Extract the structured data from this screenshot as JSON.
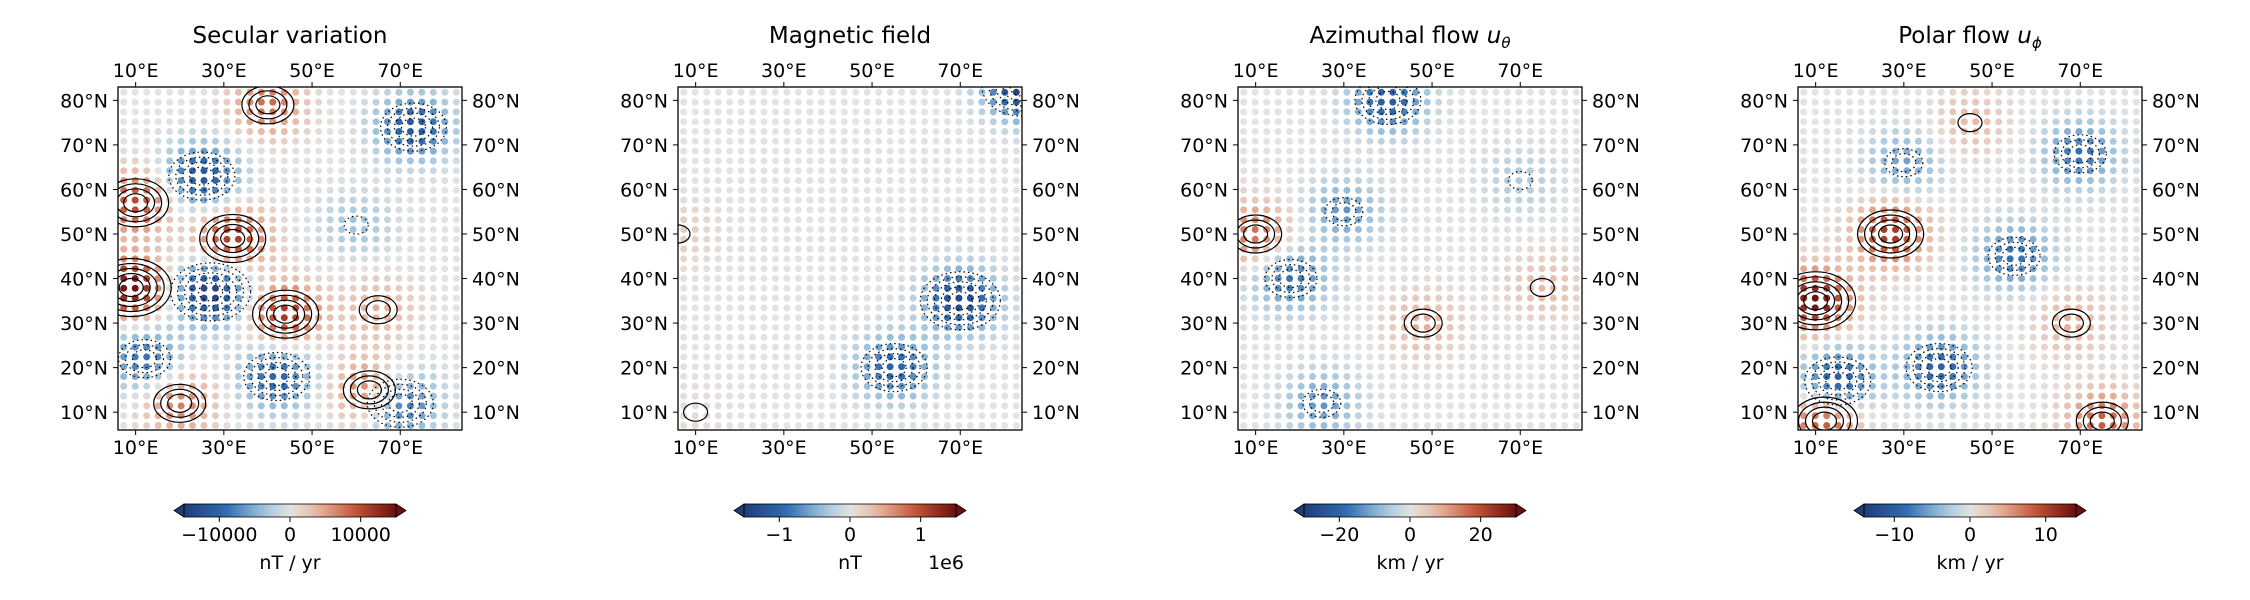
{
  "colors": {
    "neg_strong": "#243b7a",
    "neg_mid": "#2f6db2",
    "neg_light": "#9ec3dc",
    "neutral": "#e3e3e3",
    "pos_light": "#e8b9a4",
    "pos_mid": "#c65a3a",
    "pos_strong": "#6b0e0e",
    "contour": "#000000"
  },
  "chart_data": [
    {
      "type": "heatmap",
      "title_text": "Secular variation",
      "title_sub": "",
      "xtick_labels": [
        "10°E",
        "30°E",
        "50°E",
        "70°E"
      ],
      "xticks": [
        10,
        30,
        50,
        70
      ],
      "ytick_labels": [
        "10°N",
        "20°N",
        "30°N",
        "40°N",
        "50°N",
        "60°N",
        "70°N",
        "80°N"
      ],
      "yticks": [
        10,
        20,
        30,
        40,
        50,
        60,
        70,
        80
      ],
      "xlim": [
        6,
        84
      ],
      "ylim": [
        6,
        83
      ],
      "colorbar": {
        "ticks": [
          -10000,
          0,
          10000
        ],
        "tick_labels": [
          "−10000",
          "0",
          "10000"
        ],
        "label": "nT / yr",
        "offset": "",
        "vmax": 15000
      },
      "features": [
        {
          "lon": 25,
          "lat": 63,
          "v": -0.8
        },
        {
          "lon": 73,
          "lat": 74,
          "v": -0.8
        },
        {
          "lon": 27,
          "lat": 37,
          "v": -1.0
        },
        {
          "lon": 42,
          "lat": 18,
          "v": -0.7
        },
        {
          "lon": 70,
          "lat": 12,
          "v": -0.7
        },
        {
          "lon": 12,
          "lat": 22,
          "v": -0.6
        },
        {
          "lon": 32,
          "lat": 49,
          "v": 0.8
        },
        {
          "lon": 44,
          "lat": 32,
          "v": 0.8
        },
        {
          "lon": 9,
          "lat": 38,
          "v": 1.0
        },
        {
          "lon": 10,
          "lat": 57,
          "v": 0.7
        },
        {
          "lon": 40,
          "lat": 79,
          "v": 0.55
        },
        {
          "lon": 63,
          "lat": 15,
          "v": 0.6
        },
        {
          "lon": 20,
          "lat": 12,
          "v": 0.5
        },
        {
          "lon": 65,
          "lat": 33,
          "v": 0.3
        },
        {
          "lon": 60,
          "lat": 52,
          "v": -0.25
        }
      ]
    },
    {
      "type": "heatmap",
      "title_text": "Magnetic field",
      "title_sub": "",
      "xtick_labels": [
        "10°E",
        "30°E",
        "50°E",
        "70°E"
      ],
      "xticks": [
        10,
        30,
        50,
        70
      ],
      "ytick_labels": [
        "10°N",
        "20°N",
        "30°N",
        "40°N",
        "50°N",
        "60°N",
        "70°N",
        "80°N"
      ],
      "yticks": [
        10,
        20,
        30,
        40,
        50,
        60,
        70,
        80
      ],
      "xlim": [
        6,
        84
      ],
      "ylim": [
        6,
        83
      ],
      "colorbar": {
        "ticks": [
          -1,
          0,
          1
        ],
        "tick_labels": [
          "−1",
          "0",
          "1"
        ],
        "label": "nT",
        "offset": "1e6",
        "vmax": 1.5
      },
      "features": [
        {
          "lon": 84,
          "lat": 83,
          "v": -1.0
        },
        {
          "lon": 70,
          "lat": 35,
          "v": -0.9
        },
        {
          "lon": 55,
          "lat": 20,
          "v": -0.7
        },
        {
          "lon": 6,
          "lat": 50,
          "v": 0.15
        },
        {
          "lon": 10,
          "lat": 10,
          "v": 0.05
        }
      ]
    },
    {
      "type": "heatmap",
      "title_text": "Azimuthal flow ",
      "title_sub": "θ",
      "xtick_labels": [
        "10°E",
        "30°E",
        "50°E",
        "70°E"
      ],
      "xticks": [
        10,
        30,
        50,
        70
      ],
      "ytick_labels": [
        "10°N",
        "20°N",
        "30°N",
        "40°N",
        "50°N",
        "60°N",
        "70°N",
        "80°N"
      ],
      "yticks": [
        10,
        20,
        30,
        40,
        50,
        60,
        70,
        80
      ],
      "xlim": [
        6,
        84
      ],
      "ylim": [
        6,
        83
      ],
      "colorbar": {
        "ticks": [
          -20,
          0,
          20
        ],
        "tick_labels": [
          "−20",
          "0",
          "20"
        ],
        "label": "km / yr",
        "offset": "",
        "vmax": 30
      },
      "features": [
        {
          "lon": 40,
          "lat": 80,
          "v": -0.75
        },
        {
          "lon": 18,
          "lat": 40,
          "v": -0.6
        },
        {
          "lon": 30,
          "lat": 55,
          "v": -0.45
        },
        {
          "lon": 25,
          "lat": 12,
          "v": -0.45
        },
        {
          "lon": 10,
          "lat": 50,
          "v": 0.55
        },
        {
          "lon": 48,
          "lat": 30,
          "v": 0.3
        },
        {
          "lon": 75,
          "lat": 38,
          "v": 0.25
        },
        {
          "lon": 70,
          "lat": 62,
          "v": -0.2
        }
      ]
    },
    {
      "type": "heatmap",
      "title_text": "Polar flow ",
      "title_sub": "ϕ",
      "xtick_labels": [
        "10°E",
        "30°E",
        "50°E",
        "70°E"
      ],
      "xticks": [
        10,
        30,
        50,
        70
      ],
      "ytick_labels": [
        "10°N",
        "20°N",
        "30°N",
        "40°N",
        "50°N",
        "60°N",
        "70°N",
        "80°N"
      ],
      "yticks": [
        10,
        20,
        30,
        40,
        50,
        60,
        70,
        80
      ],
      "xlim": [
        6,
        84
      ],
      "ylim": [
        6,
        83
      ],
      "colorbar": {
        "ticks": [
          -10,
          0,
          10
        ],
        "tick_labels": [
          "−10",
          "0",
          "10"
        ],
        "label": "km / yr",
        "offset": "",
        "vmax": 14
      },
      "features": [
        {
          "lon": 27,
          "lat": 50,
          "v": 0.8
        },
        {
          "lon": 10,
          "lat": 35,
          "v": 1.0
        },
        {
          "lon": 15,
          "lat": 17,
          "v": -0.8
        },
        {
          "lon": 38,
          "lat": 20,
          "v": -0.7
        },
        {
          "lon": 55,
          "lat": 45,
          "v": -0.6
        },
        {
          "lon": 70,
          "lat": 68,
          "v": -0.6
        },
        {
          "lon": 68,
          "lat": 30,
          "v": 0.3
        },
        {
          "lon": 12,
          "lat": 8,
          "v": 0.7
        },
        {
          "lon": 75,
          "lat": 8,
          "v": 0.6
        },
        {
          "lon": 45,
          "lat": 75,
          "v": 0.25
        },
        {
          "lon": 30,
          "lat": 66,
          "v": -0.4
        }
      ]
    }
  ]
}
